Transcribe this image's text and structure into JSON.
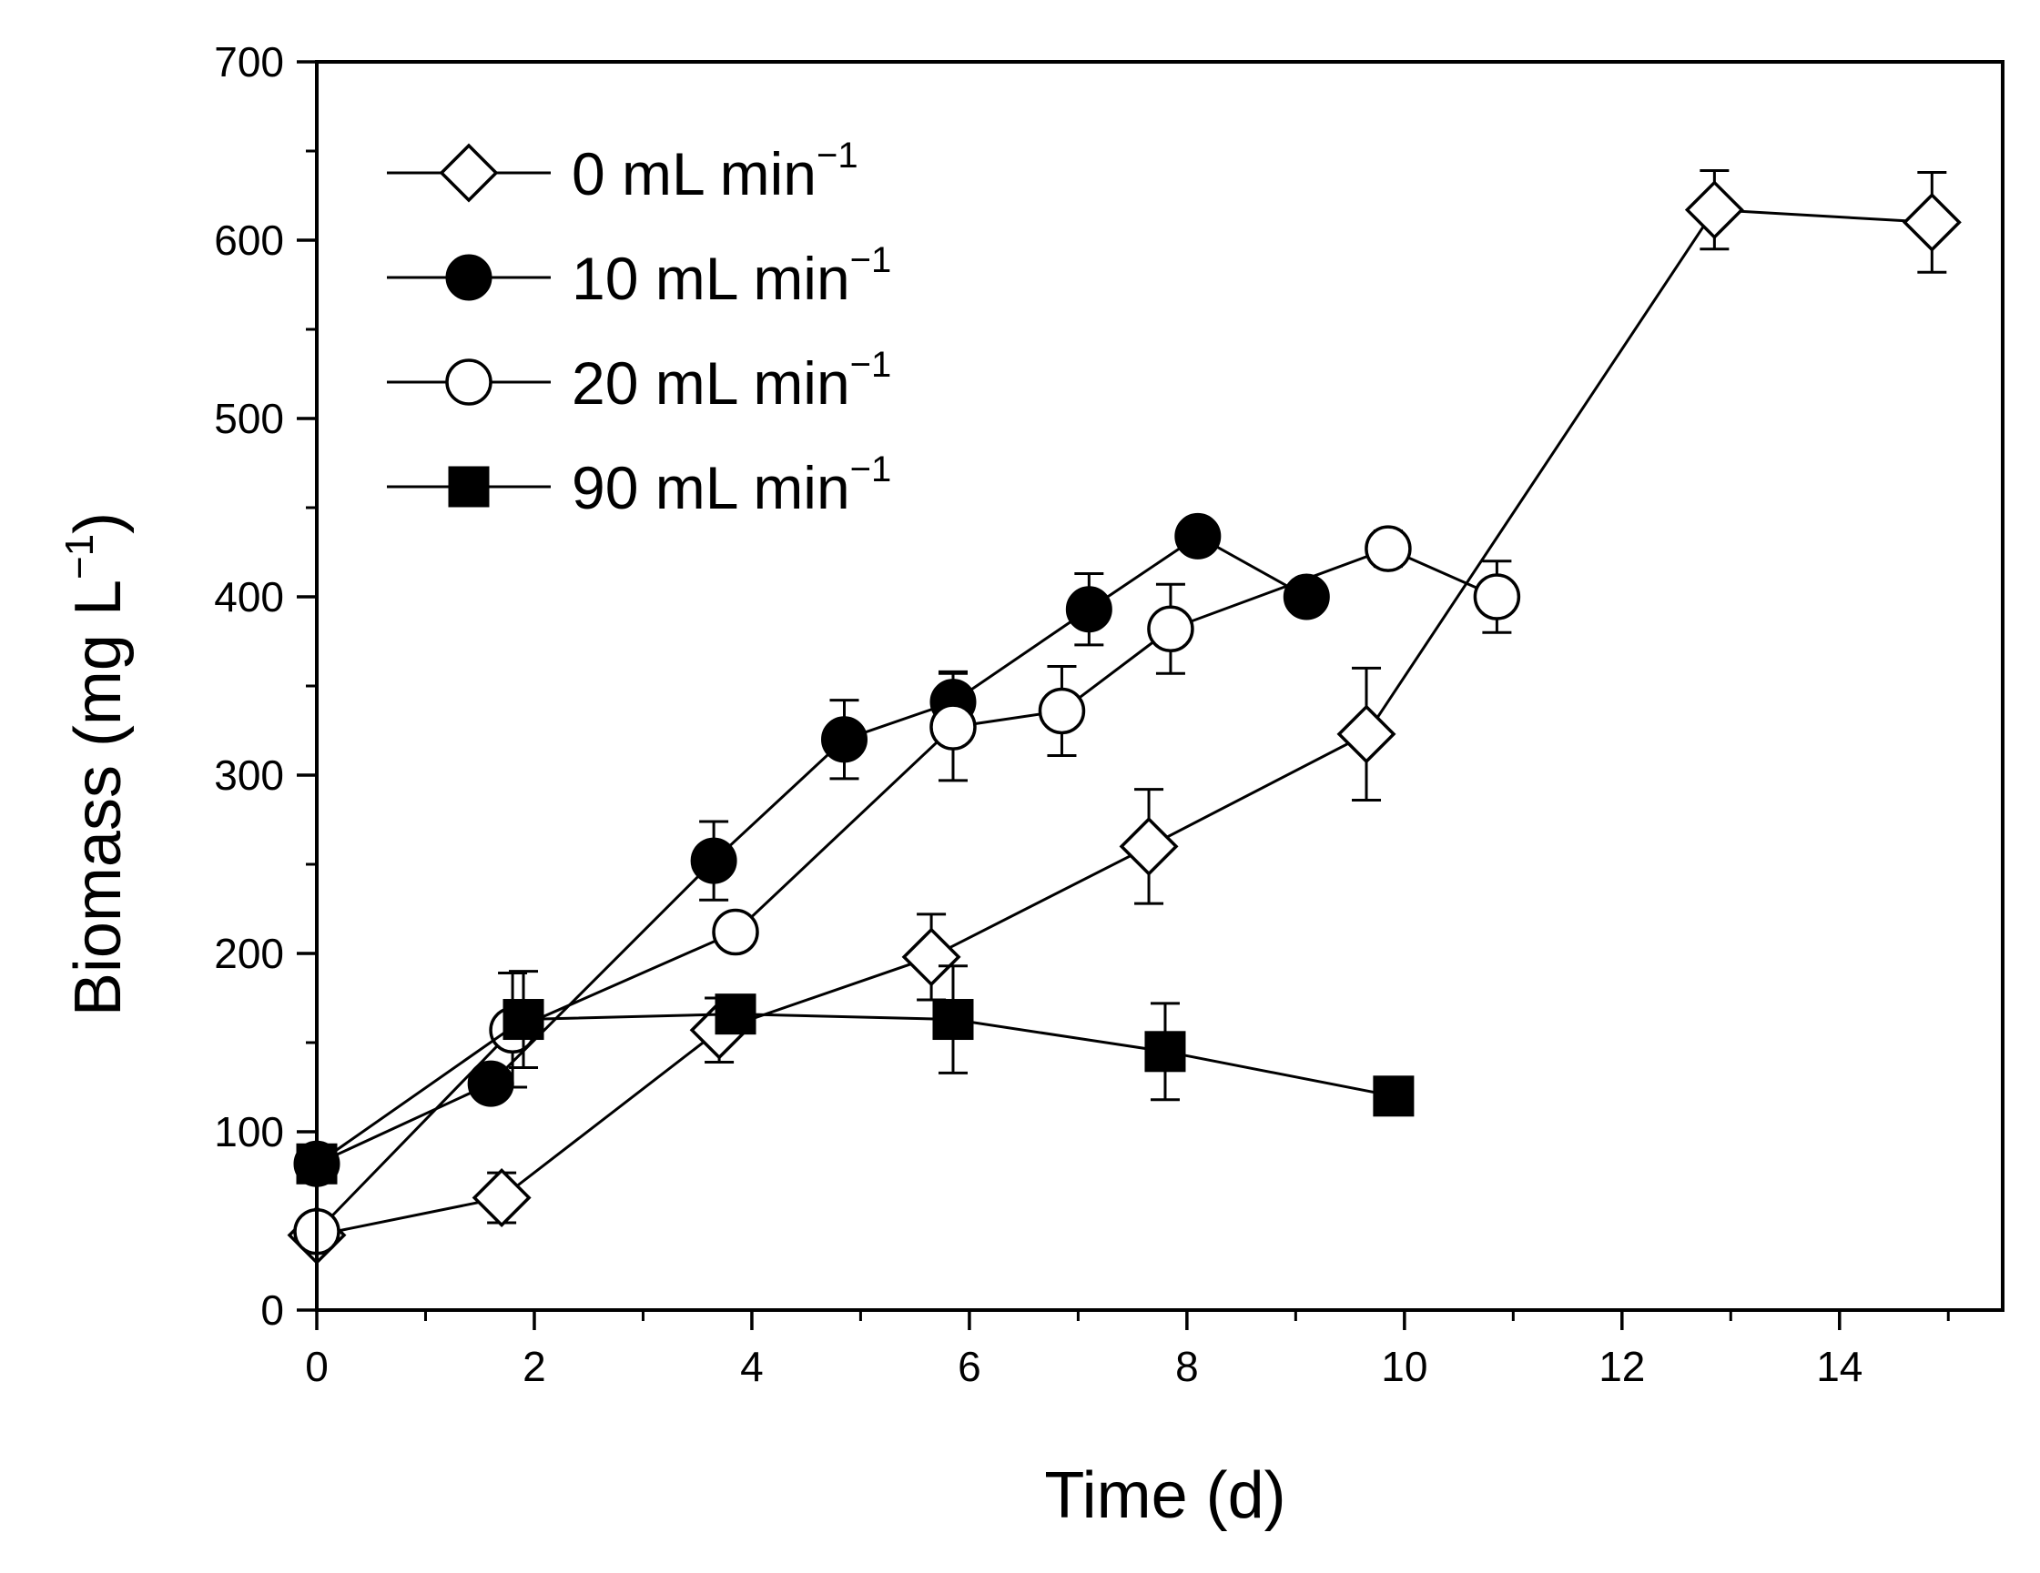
{
  "chart_data": {
    "type": "line",
    "title": "",
    "xlabel": "Time (d)",
    "ylabel_main": "Biomass (mg L",
    "ylabel_sup": "−1",
    "ylabel_close": ")",
    "xlim": [
      0,
      15.5
    ],
    "ylim": [
      0,
      700
    ],
    "x_major_ticks": [
      0,
      2,
      4,
      6,
      8,
      10,
      12,
      14
    ],
    "x_minor_ticks": [
      1,
      3,
      5,
      7,
      9,
      11,
      13,
      15
    ],
    "y_major_ticks": [
      0,
      100,
      200,
      300,
      400,
      500,
      600,
      700
    ],
    "y_minor_ticks": [
      50,
      150,
      250,
      350,
      450,
      550,
      650
    ],
    "grid": false,
    "legend_position": "top-left",
    "series": [
      {
        "name": "0 mL min",
        "name_sup": "−1",
        "marker": "diamond-open",
        "x": [
          0,
          1.7,
          3.7,
          5.65,
          7.65,
          9.65,
          12.85,
          14.85
        ],
        "y": [
          42,
          63,
          157,
          198,
          260,
          323,
          617,
          610
        ],
        "err": [
          0,
          14,
          18,
          24,
          32,
          37,
          22,
          28
        ]
      },
      {
        "name": "10 mL min",
        "name_sup": "−1",
        "marker": "circle-filled",
        "x": [
          0,
          1.6,
          3.65,
          4.85,
          5.85,
          7.1,
          8.1,
          9.1
        ],
        "y": [
          82,
          127,
          252,
          320,
          341,
          393,
          434,
          400
        ],
        "err": [
          0,
          0,
          22,
          22,
          17,
          20,
          0,
          0
        ]
      },
      {
        "name": "20 mL min",
        "name_sup": "−1",
        "marker": "circle-open",
        "x": [
          0,
          1.8,
          3.85,
          5.85,
          6.85,
          7.85,
          9.85,
          10.85
        ],
        "y": [
          44,
          157,
          212,
          327,
          336,
          382,
          427,
          400
        ],
        "err": [
          0,
          32,
          0,
          30,
          25,
          25,
          10,
          20
        ]
      },
      {
        "name": "90 mL min",
        "name_sup": "−1",
        "marker": "square-filled",
        "x": [
          0,
          1.9,
          3.85,
          5.85,
          7.8,
          9.9
        ],
        "y": [
          82,
          163,
          166,
          163,
          145,
          120
        ],
        "err": [
          0,
          27,
          8,
          30,
          27,
          0
        ]
      }
    ]
  }
}
